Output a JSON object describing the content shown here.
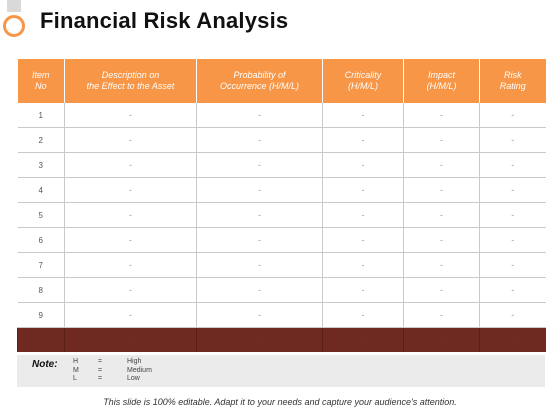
{
  "title": "Financial Risk Analysis",
  "colors": {
    "accent": "#f79646",
    "footer_row": "#6e2a20",
    "note_bg": "#ebebeb"
  },
  "table": {
    "headers": [
      [
        "Item",
        "No"
      ],
      [
        "Description on",
        "the Effect to the Asset"
      ],
      [
        "Probability of",
        "Occurrence (H/M/L)"
      ],
      [
        "Criticality",
        "(H/M/L)"
      ],
      [
        "Impact",
        "(H/M/L)"
      ],
      [
        "Risk",
        "Rating"
      ]
    ],
    "rows": [
      [
        "1",
        "-",
        "-",
        "-",
        "-",
        "-"
      ],
      [
        "2",
        "-",
        "-",
        "-",
        "-",
        "-"
      ],
      [
        "3",
        "-",
        "-",
        "-",
        "-",
        "-"
      ],
      [
        "4",
        "-",
        "-",
        "-",
        "-",
        "-"
      ],
      [
        "5",
        "-",
        "-",
        "-",
        "-",
        "-"
      ],
      [
        "6",
        "-",
        "-",
        "-",
        "-",
        "-"
      ],
      [
        "7",
        "-",
        "-",
        "-",
        "-",
        "-"
      ],
      [
        "8",
        "-",
        "-",
        "-",
        "-",
        "-"
      ],
      [
        "9",
        "-",
        "-",
        "-",
        "-",
        "-"
      ]
    ],
    "footer": [
      "",
      "-",
      "-",
      "-",
      "-",
      "-"
    ]
  },
  "note": {
    "label": "Note:",
    "legend": [
      {
        "key": "H",
        "eq": "=",
        "value": "High"
      },
      {
        "key": "M",
        "eq": "=",
        "value": "Medium"
      },
      {
        "key": "L",
        "eq": "=",
        "value": "Low"
      }
    ]
  },
  "caption": "This slide is 100% editable. Adapt it to your needs and capture your audience's attention."
}
